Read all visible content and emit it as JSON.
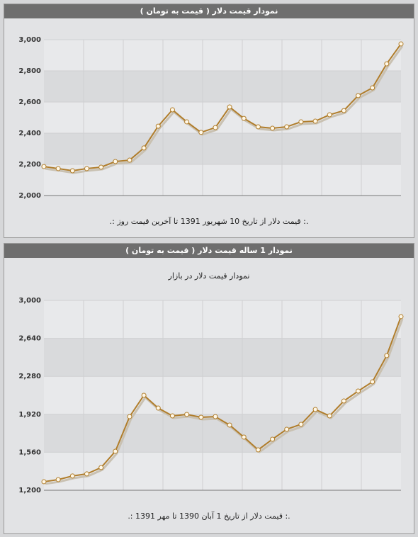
{
  "chart_data": [
    {
      "type": "line",
      "title": "نمودار قیمت دلار ( قیمت به تومان )",
      "caption": ".: قیمت دلار از تاریخ 10 شهریور 1391 تا آخرین قیمت روز :.",
      "color": "#b07d2b",
      "grid": true,
      "values": [
        2186,
        2173,
        2159,
        2173,
        2182,
        2218,
        2227,
        2305,
        2445,
        2550,
        2473,
        2405,
        2436,
        2568,
        2495,
        2441,
        2432,
        2441,
        2473,
        2477,
        2518,
        2545,
        2641,
        2691,
        2845,
        2973
      ],
      "ylim": [
        2000,
        3000
      ],
      "yticks": [
        {
          "value": 2000,
          "label": "2,000"
        },
        {
          "value": 2200,
          "label": "2,200"
        },
        {
          "value": 2400,
          "label": "2,400"
        },
        {
          "value": 2600,
          "label": "2,600"
        },
        {
          "value": 2800,
          "label": "2,800"
        },
        {
          "value": 3000,
          "label": "3,000"
        }
      ]
    },
    {
      "type": "line",
      "title": "نمودار 1 ساله قیمت دلار ( قیمت به تومان )",
      "subtitle": "نمودار قیمت دلار در بازار",
      "caption": ".: قیمت دلار از تاریخ 1 آبان 1390 تا مهر 1391 :.",
      "color": "#b07d2b",
      "grid": true,
      "values": [
        1281,
        1301,
        1335,
        1355,
        1415,
        1569,
        1898,
        2100,
        1979,
        1905,
        1919,
        1892,
        1898,
        1818,
        1704,
        1583,
        1684,
        1778,
        1825,
        1966,
        1905,
        2046,
        2140,
        2228,
        2476,
        2846
      ],
      "ylim": [
        1200,
        3000
      ],
      "yticks": [
        {
          "value": 1200,
          "label": "1,200"
        },
        {
          "value": 1560,
          "label": "1,560"
        },
        {
          "value": 1920,
          "label": "1,920"
        },
        {
          "value": 2280,
          "label": "2,280"
        },
        {
          "value": 2640,
          "label": "2,640"
        },
        {
          "value": 3000,
          "label": "3,000"
        }
      ]
    }
  ]
}
